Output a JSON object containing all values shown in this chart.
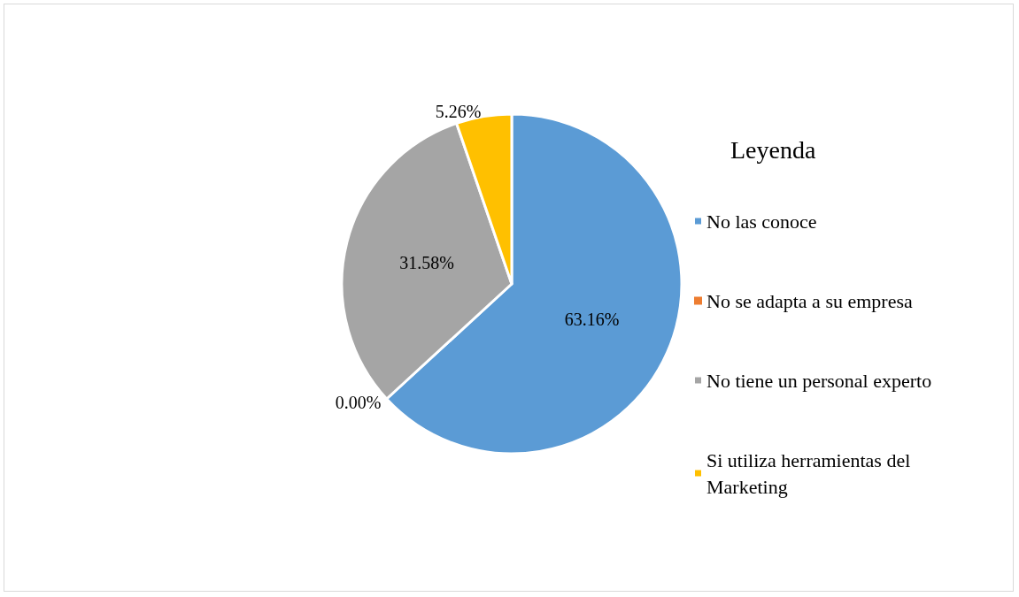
{
  "chart_data": {
    "type": "pie",
    "legend_title": "Leyenda",
    "legend": "right",
    "categories": [
      "No las conoce",
      "No se adapta a su empresa",
      "No tiene un personal experto",
      "Si utiliza herramientas del Marketing"
    ],
    "values": [
      63.16,
      0,
      31.58,
      5.26
    ],
    "colors": [
      "#5b9bd5",
      "#ed7d31",
      "#a5a5a5",
      "#ffc000"
    ],
    "value_labels": [
      "63.16%",
      "0.00%",
      "31.58%",
      "5.26%"
    ]
  }
}
